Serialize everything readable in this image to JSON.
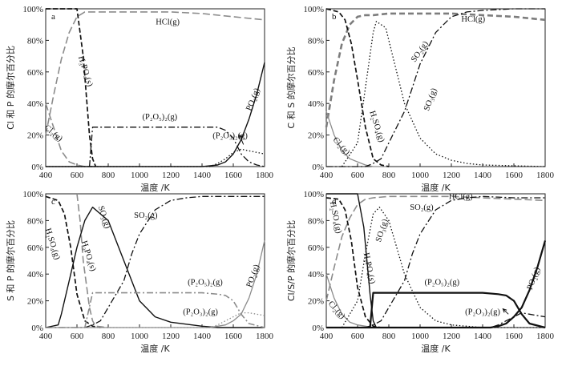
{
  "chart_data": [
    {
      "type": "line",
      "panel_label": "a",
      "xlabel": "温度 /K",
      "ylabel": "Cl 和 P 的摩尔百分比",
      "xlim": [
        400,
        1800
      ],
      "ylim": [
        0,
        100
      ],
      "xticks": [
        400,
        600,
        800,
        1000,
        1200,
        1400,
        1600,
        1800
      ],
      "yticks": [
        0,
        20,
        40,
        60,
        80,
        100
      ],
      "ytick_labels": [
        "0%",
        "20%",
        "40%",
        "60%",
        "80%",
        "100%"
      ],
      "series": [
        {
          "name": "HCl(g)",
          "style": "gray-long-dash",
          "x": [
            400,
            450,
            500,
            550,
            600,
            650,
            700,
            800,
            1000,
            1200,
            1400,
            1600,
            1800
          ],
          "y": [
            20,
            45,
            68,
            85,
            95,
            98,
            98,
            98,
            98,
            98,
            97,
            95,
            93
          ]
        },
        {
          "name": "Cl2(g)",
          "style": "gray-long-dash",
          "x": [
            400,
            450,
            500,
            550,
            600,
            650,
            700
          ],
          "y": [
            40,
            25,
            10,
            3,
            1,
            0,
            0
          ]
        },
        {
          "name": "H3PO4(s)",
          "style": "black-dash",
          "x": [
            400,
            600,
            640,
            680,
            700,
            720
          ],
          "y": [
            100,
            100,
            70,
            20,
            5,
            0
          ]
        },
        {
          "name": "(P2O5)2(g)",
          "style": "black-dash-dot",
          "x": [
            680,
            700,
            800,
            1000,
            1200,
            1400,
            1500,
            1550,
            1600,
            1650,
            1700,
            1750,
            1800
          ],
          "y": [
            0,
            25,
            25,
            25,
            25,
            25,
            25,
            23,
            18,
            8,
            3,
            1,
            0
          ]
        },
        {
          "name": "PO2(g)",
          "style": "black-solid",
          "x": [
            400,
            1400,
            1500,
            1550,
            1600,
            1650,
            1700,
            1750,
            1800
          ],
          "y": [
            0,
            0,
            1,
            3,
            8,
            17,
            30,
            46,
            66
          ]
        },
        {
          "name": "(P2O3)2(g)",
          "style": "black-dotted",
          "x": [
            400,
            1450,
            1500,
            1550,
            1600,
            1650,
            1700,
            1750,
            1800
          ],
          "y": [
            0,
            0,
            2,
            5,
            9,
            11,
            10,
            9,
            8
          ]
        }
      ],
      "annotations": [
        "HCl(g)",
        "H3PO4(s)",
        "(P2O5)2(g)",
        "PO2(g)",
        "(P2O3)2(g)",
        "Cl2(g)"
      ]
    },
    {
      "type": "line",
      "panel_label": "b",
      "xlabel": "温度 /K",
      "ylabel": "C 和 S 的摩尔百分比",
      "xlim": [
        400,
        1800
      ],
      "ylim": [
        0,
        100
      ],
      "xticks": [
        400,
        600,
        800,
        1000,
        1200,
        1400,
        1600,
        1800
      ],
      "yticks": [
        0,
        20,
        40,
        60,
        80,
        100
      ],
      "ytick_labels": [
        "0%",
        "20%",
        "40%",
        "60%",
        "80%",
        "100%"
      ],
      "series": [
        {
          "name": "HCl(g)",
          "style": "gray-thick-dash",
          "x": [
            400,
            450,
            500,
            550,
            600,
            650,
            700,
            800,
            1000,
            1200,
            1400,
            1600,
            1800
          ],
          "y": [
            25,
            55,
            78,
            90,
            95,
            96,
            96,
            97,
            97,
            97,
            96,
            95,
            93
          ]
        },
        {
          "name": "Cl2(g)",
          "style": "gray-solid",
          "x": [
            400,
            450,
            500,
            550,
            600,
            650,
            700,
            800
          ],
          "y": [
            35,
            20,
            10,
            5,
            3,
            1,
            0,
            0
          ]
        },
        {
          "name": "H2SO4(g)",
          "style": "black-dash",
          "x": [
            400,
            480,
            520,
            560,
            600,
            650,
            700,
            750,
            800
          ],
          "y": [
            100,
            98,
            93,
            78,
            55,
            25,
            5,
            1,
            0
          ]
        },
        {
          "name": "SO3(g)",
          "style": "black-dotted",
          "x": [
            500,
            600,
            650,
            700,
            720,
            780,
            850,
            900,
            1000,
            1100,
            1200,
            1300,
            1400,
            1800
          ],
          "y": [
            0,
            15,
            50,
            85,
            92,
            88,
            60,
            40,
            18,
            8,
            4,
            2,
            1,
            0
          ]
        },
        {
          "name": "SO2(g)",
          "style": "black-dash-dot",
          "x": [
            400,
            650,
            700,
            750,
            800,
            900,
            950,
            1000,
            1100,
            1200,
            1300,
            1400,
            1600,
            1800
          ],
          "y": [
            0,
            0,
            2,
            5,
            15,
            35,
            50,
            65,
            85,
            95,
            98,
            99,
            100,
            100
          ]
        }
      ],
      "annotations": [
        "HCl(g)",
        "SO2(g)",
        "H2SO4(g)",
        "SO3(g)",
        "Cl2(g)"
      ]
    },
    {
      "type": "line",
      "panel_label": "c",
      "xlabel": "温度 /K",
      "ylabel": "S 和 P 的摩尔百分比",
      "xlim": [
        400,
        1800
      ],
      "ylim": [
        0,
        100
      ],
      "xticks": [
        400,
        600,
        800,
        1000,
        1200,
        1400,
        1600,
        1800
      ],
      "yticks": [
        0,
        20,
        40,
        60,
        80,
        100
      ],
      "ytick_labels": [
        "0%",
        "20%",
        "40%",
        "60%",
        "80%",
        "100%"
      ],
      "series": [
        {
          "name": "H2SO4(g)",
          "style": "black-dash",
          "x": [
            400,
            480,
            520,
            560,
            600,
            650,
            700,
            750
          ],
          "y": [
            98,
            95,
            85,
            60,
            25,
            5,
            1,
            0
          ]
        },
        {
          "name": "H3PO4(s)",
          "style": "gray-long-dash",
          "x": [
            600,
            620,
            640,
            680,
            700,
            720,
            800
          ],
          "y": [
            100,
            80,
            50,
            15,
            5,
            1,
            0
          ]
        },
        {
          "name": "SO3(g)",
          "style": "black-solid",
          "x": [
            400,
            480,
            500,
            550,
            600,
            650,
            700,
            750,
            800,
            900,
            1000,
            1100,
            1200,
            1400,
            1500,
            1800
          ],
          "y": [
            0,
            2,
            10,
            35,
            60,
            80,
            90,
            85,
            80,
            50,
            20,
            8,
            4,
            1,
            0,
            0
          ]
        },
        {
          "name": "SO2(g)",
          "style": "black-dash-dot",
          "x": [
            400,
            650,
            700,
            750,
            800,
            900,
            950,
            1000,
            1100,
            1200,
            1300,
            1400,
            1600,
            1800
          ],
          "y": [
            0,
            0,
            2,
            5,
            15,
            35,
            55,
            70,
            88,
            95,
            97,
            98,
            98,
            98
          ]
        },
        {
          "name": "(P2O5)2(g)",
          "style": "gray-dash-dot",
          "x": [
            650,
            700,
            800,
            1000,
            1200,
            1400,
            1500,
            1550,
            1600,
            1650,
            1700,
            1800
          ],
          "y": [
            0,
            26,
            26,
            26,
            26,
            26,
            25,
            24,
            20,
            10,
            3,
            0
          ]
        },
        {
          "name": "PO2(g)",
          "style": "gray-solid",
          "x": [
            400,
            1450,
            1500,
            1550,
            1600,
            1650,
            1700,
            1750,
            1800
          ],
          "y": [
            0,
            0,
            1,
            2,
            5,
            10,
            22,
            40,
            65
          ]
        },
        {
          "name": "(P2O3)2(g)",
          "style": "gray-dotted",
          "x": [
            400,
            1450,
            1500,
            1550,
            1600,
            1650,
            1700,
            1750,
            1800
          ],
          "y": [
            0,
            0,
            2,
            5,
            8,
            11,
            11,
            10,
            9
          ]
        }
      ],
      "annotations": [
        "SO3(g)",
        "SO2(g)",
        "H2SO4(g)",
        "H3PO4(s)",
        "(P2O5)2(g)",
        "PO2(g)",
        "(P2O3)2(g)"
      ]
    },
    {
      "type": "line",
      "panel_label": "d",
      "xlabel": "温度 /K",
      "ylabel": "Cl/S/P 的摩尔百分比",
      "xlim": [
        400,
        1800
      ],
      "ylim": [
        0,
        100
      ],
      "xticks": [
        400,
        600,
        800,
        1000,
        1200,
        1400,
        1600,
        1800
      ],
      "yticks": [
        0,
        20,
        40,
        60,
        80,
        100
      ],
      "ytick_labels": [
        "0%",
        "20%",
        "40%",
        "60%",
        "80%",
        "100%"
      ],
      "series": [
        {
          "name": "HCl(g)",
          "style": "gray-long-dash",
          "x": [
            400,
            450,
            500,
            550,
            600,
            650,
            700,
            800,
            1000,
            1200,
            1400,
            1600,
            1800
          ],
          "y": [
            20,
            45,
            68,
            82,
            92,
            96,
            97,
            98,
            98,
            98,
            97,
            96,
            95
          ]
        },
        {
          "name": "Cl2(g)",
          "style": "gray-solid",
          "x": [
            400,
            450,
            500,
            550,
            600,
            650,
            700
          ],
          "y": [
            40,
            22,
            10,
            4,
            2,
            1,
            0
          ]
        },
        {
          "name": "H2SO4(g)",
          "style": "black-dash",
          "x": [
            400,
            480,
            520,
            560,
            600,
            650,
            700,
            750
          ],
          "y": [
            97,
            96,
            88,
            65,
            30,
            8,
            1,
            0
          ]
        },
        {
          "name": "H3PO4(s)",
          "style": "black-solid",
          "x": [
            400,
            600,
            640,
            680,
            700,
            720
          ],
          "y": [
            100,
            100,
            75,
            25,
            5,
            0
          ]
        },
        {
          "name": "SO3(g)",
          "style": "black-dotted",
          "x": [
            500,
            600,
            650,
            700,
            740,
            800,
            850,
            900,
            1000,
            1100,
            1200,
            1400,
            1800
          ],
          "y": [
            0,
            20,
            55,
            85,
            90,
            80,
            60,
            40,
            15,
            5,
            2,
            0,
            0
          ]
        },
        {
          "name": "SO2(g)",
          "style": "black-dash-dot",
          "x": [
            400,
            650,
            700,
            750,
            800,
            900,
            950,
            1000,
            1100,
            1200,
            1300,
            1400,
            1600,
            1800
          ],
          "y": [
            0,
            0,
            2,
            5,
            15,
            35,
            55,
            70,
            88,
            95,
            97,
            98,
            97,
            97
          ]
        },
        {
          "name": "(P2O5)2(g)",
          "style": "black-solid-thick",
          "x": [
            680,
            700,
            800,
            1000,
            1200,
            1400,
            1500,
            1550,
            1600,
            1650,
            1700,
            1800
          ],
          "y": [
            0,
            26,
            26,
            26,
            26,
            26,
            25,
            24,
            20,
            10,
            3,
            0
          ]
        },
        {
          "name": "PO2(g)",
          "style": "black-solid-thick",
          "x": [
            400,
            1450,
            1500,
            1550,
            1600,
            1650,
            1700,
            1750,
            1800
          ],
          "y": [
            0,
            0,
            1,
            3,
            8,
            15,
            28,
            45,
            65
          ]
        },
        {
          "name": "(P2O3)2(g)",
          "style": "black-dash-dot",
          "x": [
            400,
            1450,
            1500,
            1550,
            1600,
            1650,
            1700,
            1750,
            1800
          ],
          "y": [
            0,
            0,
            2,
            5,
            8,
            11,
            10,
            9,
            8
          ]
        }
      ],
      "annotations": [
        "HCl(g)",
        "SO2(g)",
        "H2SO4(g)",
        "SO3(g)",
        "H3PO4(s)",
        "(P2O5)2(g)",
        "PO2(g)",
        "(P2O3)2(g)",
        "Cl2(g)"
      ]
    }
  ]
}
